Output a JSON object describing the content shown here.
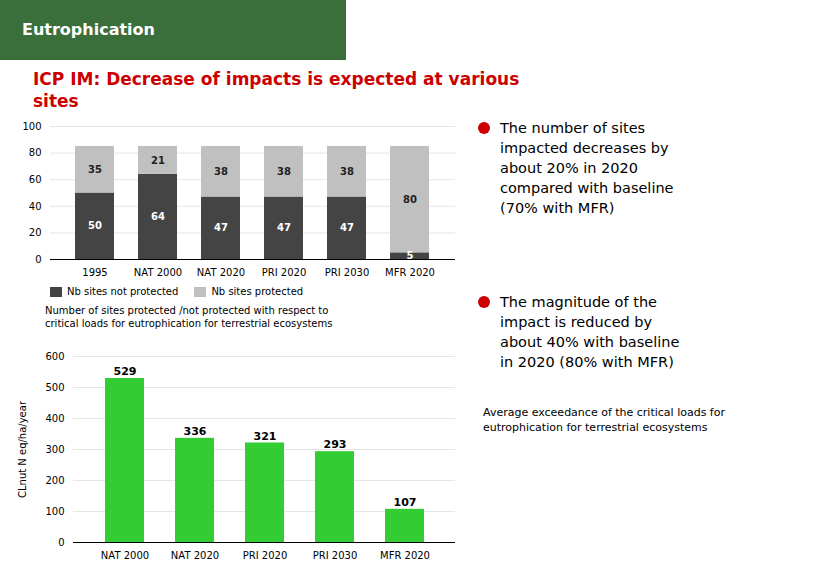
{
  "title": [
    "ICP IM: Decrease of impacts is expected at various",
    "sites"
  ],
  "color": "#cc0000",
  "annotations": [
    {
      "text": [
        "Eutrophication"
      ],
      "color": "#3a6e3a"
    },
    {
      "text": [
        "The number of sites",
        "impacted decreases by",
        "about 20% in 2020",
        "compared with baseline",
        "(70% with MFR)"
      ],
      "color": "#cc0000"
    },
    {
      "text": [
        "The magnitude of the",
        "impact is reduced by",
        "about 40% with baseline",
        "in 2020 (80% with MFR)"
      ],
      "color": "#cc0000"
    }
  ],
  "chart_data": [
    {
      "type": "bar",
      "stacked": true,
      "categories": [
        "1995",
        "NAT 2000",
        "NAT 2020",
        "PRI 2020",
        "PRI 2030",
        "MFR 2020"
      ],
      "series": [
        {
          "name": "Nb sites not protected",
          "color": "#444444",
          "values": [
            50,
            64,
            47,
            47,
            47,
            5
          ]
        },
        {
          "name": "Nb sites protected",
          "color": "#c0c0c0",
          "values": [
            35,
            21,
            38,
            38,
            38,
            80
          ]
        }
      ],
      "ylim": [
        0,
        100
      ],
      "yticks": [
        0,
        20,
        40,
        60,
        80,
        100
      ],
      "grid": true,
      "legend": "bottom",
      "data_labels": true,
      "annotations": [
        "Number of sites protected /not protected with respect to",
        "critical loads for eutrophication for terrestrial ecosystems"
      ]
    },
    {
      "type": "bar",
      "categories": [
        "NAT 2000",
        "NAT 2020",
        "PRI 2020",
        "PRI 2030",
        "MFR 2020"
      ],
      "values": [
        529,
        336,
        321,
        293,
        107
      ],
      "color": "#33cc33",
      "ylabel": "CLnut N eq/ha/year",
      "ylim": [
        0,
        600
      ],
      "yticks": [
        0,
        100,
        200,
        300,
        400,
        500,
        600
      ],
      "grid": true,
      "data_labels": true,
      "annotations": [
        "Average exceedance of the critical loads for",
        "eutrophication for terrestrial ecosystems"
      ]
    }
  ]
}
